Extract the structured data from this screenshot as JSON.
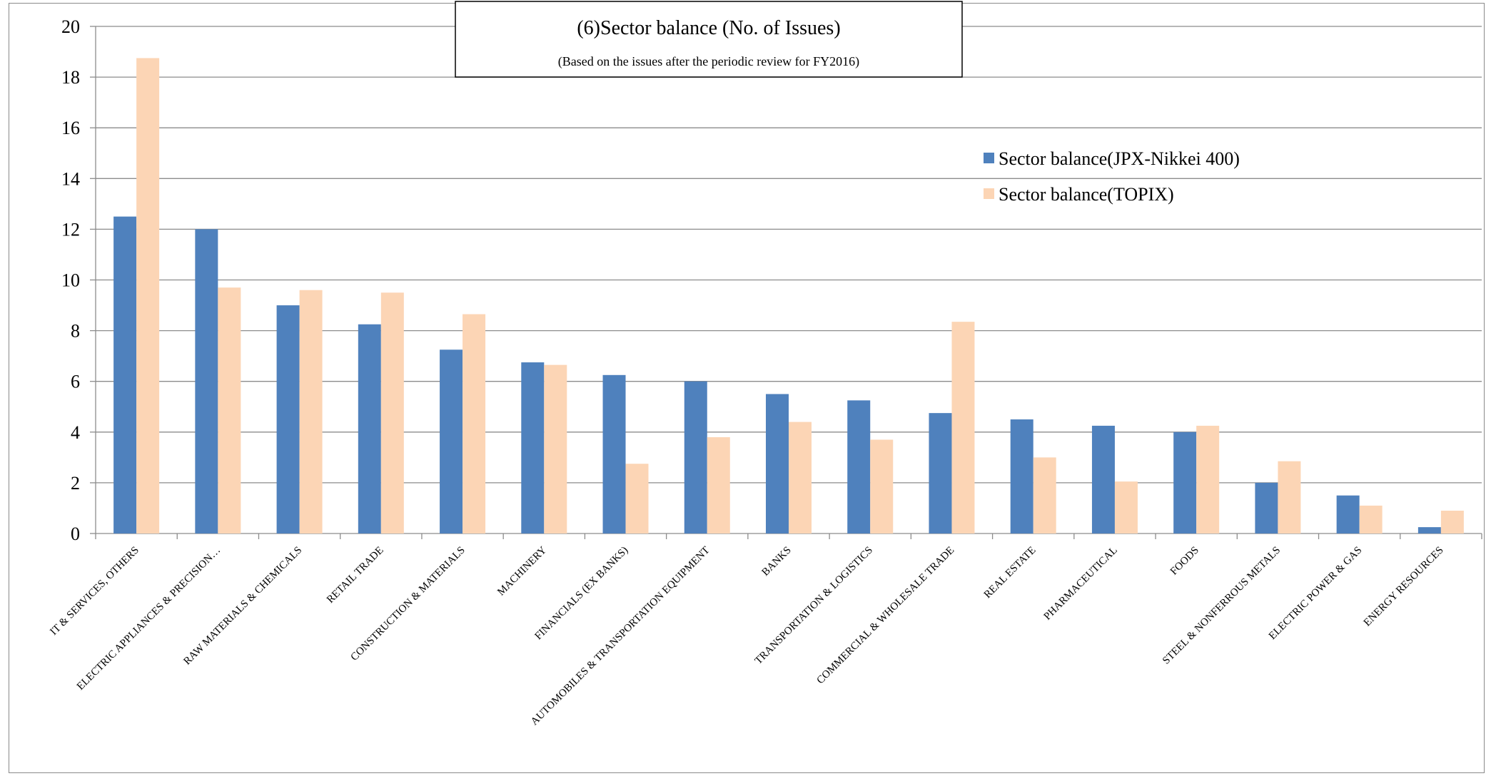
{
  "chart_data": {
    "type": "bar",
    "title": "(6)Sector balance (No. of Issues)",
    "subtitle": "(Based on the issues after the periodic review for FY2016)",
    "ylim": [
      0,
      20
    ],
    "yticks": [
      0,
      2,
      4,
      6,
      8,
      10,
      12,
      14,
      16,
      18,
      20
    ],
    "grid": true,
    "legend_position": "right",
    "categories": [
      "IT & SERVICES, OTHERS",
      "ELECTRIC APPLIANCES & PRECISION…",
      "RAW MATERIALS & CHEMICALS",
      "RETAIL TRADE",
      "CONSTRUCTION & MATERIALS",
      "MACHINERY",
      "FINANCIALS (EX BANKS)",
      "AUTOMOBILES & TRANSPORTATION EQUIPMENT",
      "BANKS",
      "TRANSPORTATION & LOGISTICS",
      "COMMERCIAL & WHOLESALE TRADE",
      "REAL ESTATE",
      "PHARMACEUTICAL",
      "FOODS",
      "STEEL & NONFERROUS METALS",
      "ELECTRIC POWER & GAS",
      "ENERGY RESOURCES"
    ],
    "series": [
      {
        "name": "Sector balance(JPX-Nikkei 400)",
        "color": "#4f81bd",
        "values": [
          12.5,
          12.0,
          9.0,
          8.25,
          7.25,
          6.75,
          6.25,
          6.0,
          5.5,
          5.25,
          4.75,
          4.5,
          4.25,
          4.0,
          2.0,
          1.5,
          0.25
        ]
      },
      {
        "name": "Sector balance(TOPIX)",
        "color": "#fcd5b5",
        "values": [
          18.75,
          9.7,
          9.6,
          9.5,
          8.65,
          6.65,
          2.75,
          3.8,
          4.4,
          3.7,
          8.35,
          3.0,
          2.05,
          4.25,
          2.85,
          1.1,
          0.9
        ]
      }
    ]
  }
}
